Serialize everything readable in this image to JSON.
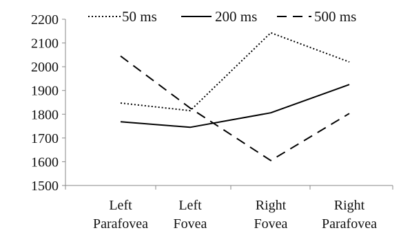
{
  "chart_data": {
    "type": "line",
    "categories": [
      [
        "Left",
        "Parafovea"
      ],
      [
        "Left",
        "Fovea"
      ],
      [
        "Right",
        "Fovea"
      ],
      [
        "Right",
        "Parafovea"
      ]
    ],
    "ylim": [
      1500,
      2200
    ],
    "yticks": [
      1500,
      1600,
      1700,
      1800,
      1900,
      2000,
      2100,
      2200
    ],
    "grid": false,
    "legend_position": "top",
    "series": [
      {
        "name": "50 ms",
        "style": "dotted",
        "values": [
          1847,
          1815,
          2143,
          2020
        ]
      },
      {
        "name": "200 ms",
        "style": "solid",
        "values": [
          1768,
          1745,
          1806,
          1925
        ]
      },
      {
        "name": "500 ms",
        "style": "dashed",
        "values": [
          2045,
          1826,
          1605,
          1803
        ]
      }
    ]
  }
}
